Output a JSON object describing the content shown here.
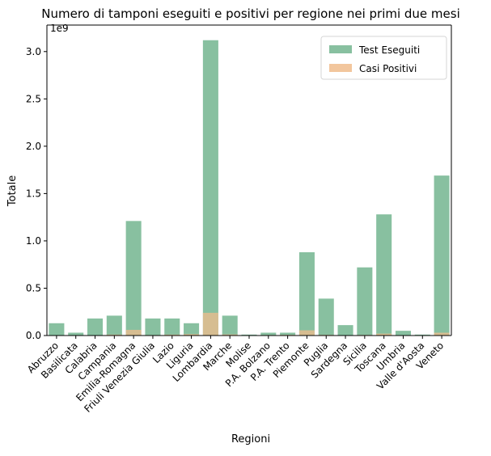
{
  "chart_data": {
    "type": "bar",
    "title": "Numero di tamponi eseguiti e positivi per regione nei primi due mesi",
    "xlabel": "Regioni",
    "ylabel": "Totale",
    "y_offset_label": "1e9",
    "y_scale": 1000000000,
    "ylim": [
      0,
      3.28
    ],
    "yticks": [
      0.0,
      0.5,
      1.0,
      1.5,
      2.0,
      2.5,
      3.0
    ],
    "ytick_labels": [
      "0.0",
      "0.5",
      "1.0",
      "1.5",
      "2.0",
      "2.5",
      "3.0"
    ],
    "grid": false,
    "legend_position": "top-right",
    "categories": [
      "Abruzzo",
      "Basilicata",
      "Calabria",
      "Campania",
      "Emilia-Romagna",
      "Friuli Venezia Giulia",
      "Lazio",
      "Liguria",
      "Lombardia",
      "Marche",
      "Molise",
      "P.A. Bolzano",
      "P.A. Trento",
      "Piemonte",
      "Puglia",
      "Sardegna",
      "Sicilia",
      "Toscana",
      "Umbria",
      "Valle d'Aosta",
      "Veneto"
    ],
    "series": [
      {
        "name": "Test Eseguiti",
        "color": "#88c0a0",
        "values": [
          0.13,
          0.03,
          0.18,
          0.21,
          1.21,
          0.18,
          0.18,
          0.13,
          3.12,
          0.21,
          0.01,
          0.03,
          0.03,
          0.88,
          0.39,
          0.11,
          0.72,
          1.28,
          0.05,
          0.01,
          1.69
        ]
      },
      {
        "name": "Casi Positivi",
        "color": "#f0bc8c",
        "values": [
          0.003,
          0.0005,
          0.002,
          0.01,
          0.06,
          0.005,
          0.01,
          0.015,
          0.24,
          0.012,
          0.0005,
          0.005,
          0.007,
          0.055,
          0.007,
          0.002,
          0.006,
          0.02,
          0.002,
          0.001,
          0.03
        ]
      }
    ]
  }
}
